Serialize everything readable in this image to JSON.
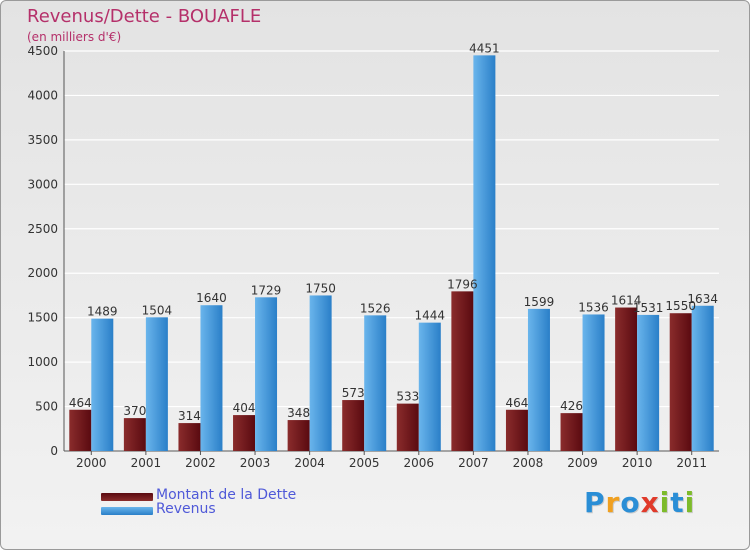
{
  "header": {
    "title": "Revenus/Dette - BOUAFLE",
    "subtitle": "(en milliers d'€)"
  },
  "chart_data": {
    "type": "bar",
    "categories": [
      "2000",
      "2001",
      "2002",
      "2003",
      "2004",
      "2005",
      "2006",
      "2007",
      "2008",
      "2009",
      "2010",
      "2011"
    ],
    "series": [
      {
        "name": "Montant de la Dette",
        "values": [
          464,
          370,
          314,
          404,
          348,
          573,
          533,
          1796,
          464,
          426,
          1614,
          1550
        ]
      },
      {
        "name": "Revenus",
        "values": [
          1489,
          1504,
          1640,
          1729,
          1750,
          1526,
          1444,
          4451,
          1599,
          1536,
          1531,
          1634
        ]
      }
    ],
    "ylim": [
      0,
      4500
    ],
    "yticks": [
      0,
      500,
      1000,
      1500,
      2000,
      2500,
      3000,
      3500,
      4000,
      4500
    ],
    "grid": true,
    "legend_position": "bottom-left"
  },
  "colors": {
    "dette_dark": "#5a0a10",
    "dette_light": "#8a2c2c",
    "revenus_dark": "#2a7fc8",
    "revenus_light": "#6ab5ec",
    "title": "#b5306a",
    "legend_text": "#4f59d8"
  },
  "legend": {
    "items": [
      {
        "label": "Montant de la Dette"
      },
      {
        "label": "Revenus"
      }
    ]
  },
  "logo": {
    "letters": [
      "P",
      "r",
      "o",
      "x",
      "i",
      "t",
      "i"
    ],
    "colors": [
      "#2a8ed6",
      "#f0a020",
      "#2a8ed6",
      "#e03a2a",
      "#7dbb2a",
      "#2a8ed6",
      "#7dbb2a"
    ]
  }
}
